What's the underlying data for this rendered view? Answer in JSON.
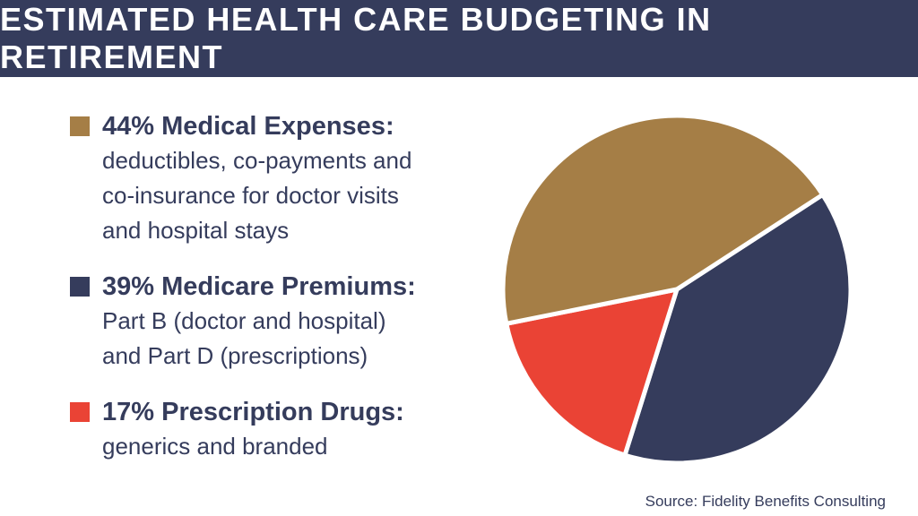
{
  "header": {
    "title": "ESTIMATED HEALTH CARE BUDGETING IN RETIREMENT"
  },
  "legend": [
    {
      "title": "44% Medical Expenses:",
      "lines": [
        "deductibles, co-payments and",
        "co-insurance for doctor visits",
        "and hospital stays"
      ],
      "color": "#a57e46"
    },
    {
      "title": "39% Medicare Premiums:",
      "lines": [
        "Part B (doctor and hospital)",
        "and Part D (prescriptions)"
      ],
      "color": "#353c5c"
    },
    {
      "title": "17% Prescription Drugs:",
      "lines": [
        "generics and branded"
      ],
      "color": "#ea4335"
    }
  ],
  "source": "Source: Fidelity Benefits Consulting",
  "chart_data": {
    "type": "pie",
    "categories": [
      "Medical Expenses",
      "Medicare Premiums",
      "Prescription Drugs"
    ],
    "values": [
      44,
      39,
      17
    ],
    "colors": [
      "#a57e46",
      "#353c5c",
      "#ea4335"
    ]
  }
}
